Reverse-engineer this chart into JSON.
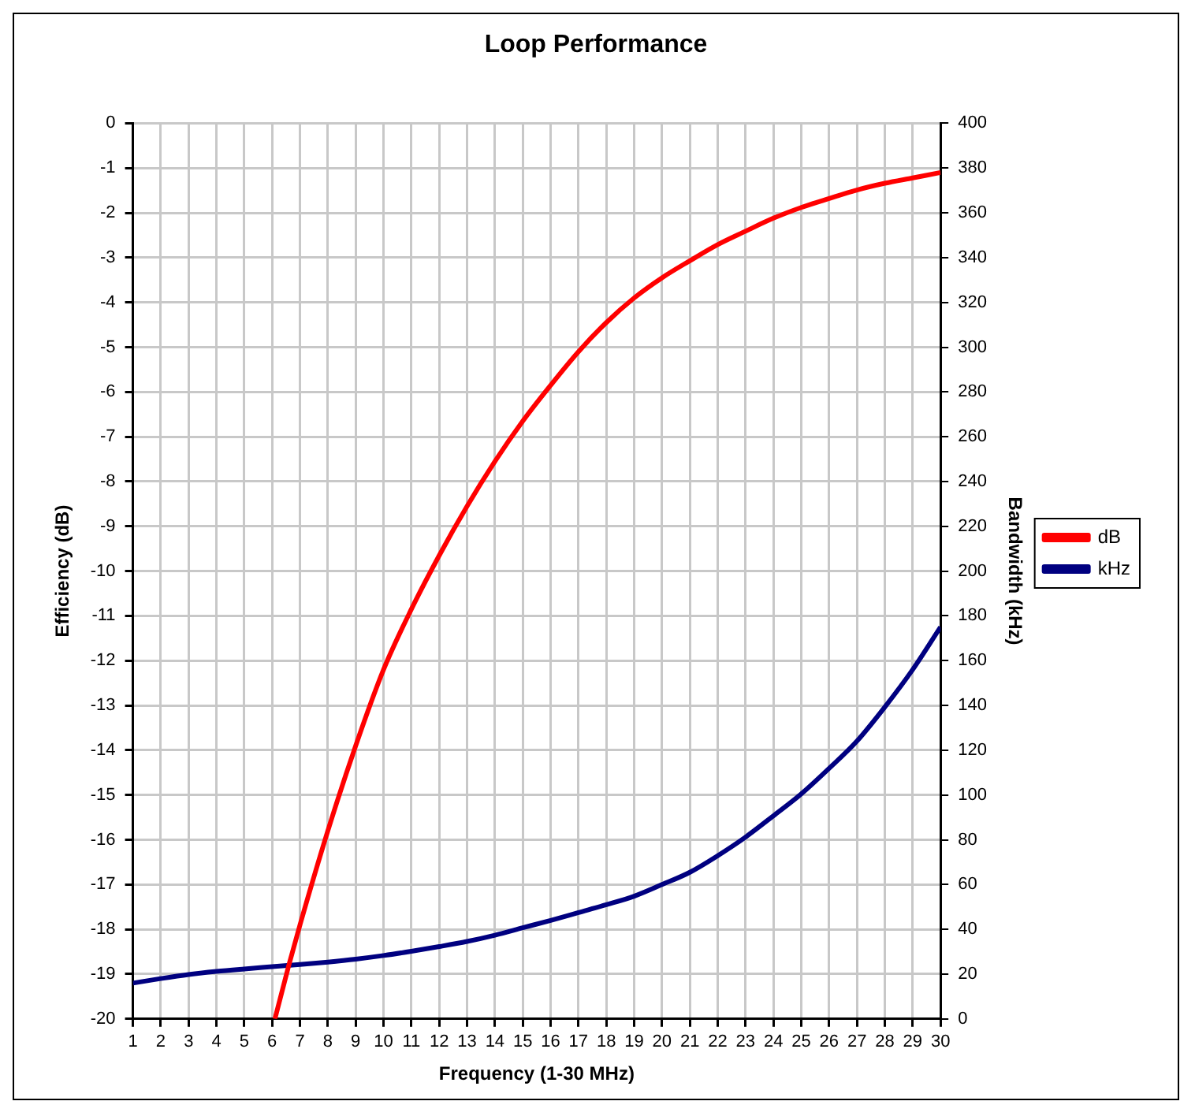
{
  "chart_data": {
    "type": "line",
    "title": "Loop Performance",
    "xlabel": "Frequency (1-30 MHz)",
    "ylabel": "Efficiency (dB)",
    "y2label": "Bandwidth (kHz)",
    "xlim": [
      1,
      30
    ],
    "xticks": [
      1,
      2,
      3,
      4,
      5,
      6,
      7,
      8,
      9,
      10,
      11,
      12,
      13,
      14,
      15,
      16,
      17,
      18,
      19,
      20,
      21,
      22,
      23,
      24,
      25,
      26,
      27,
      28,
      29,
      30
    ],
    "ylim": [
      -20,
      0
    ],
    "yticks": [
      -20,
      -19,
      -18,
      -17,
      -16,
      -15,
      -14,
      -13,
      -12,
      -11,
      -10,
      -9,
      -8,
      -7,
      -6,
      -5,
      -4,
      -3,
      -2,
      -1,
      0
    ],
    "y2lim": [
      0,
      400
    ],
    "y2ticks": [
      0,
      20,
      40,
      60,
      80,
      100,
      120,
      140,
      160,
      180,
      200,
      220,
      240,
      260,
      280,
      300,
      320,
      340,
      360,
      380,
      400
    ],
    "grid": true,
    "legend": "right",
    "marker": "none",
    "line_style": "solid",
    "series": [
      {
        "name": "dB",
        "color": "#ff0000",
        "x": [
          6.1,
          6.6,
          7,
          8,
          9,
          10,
          11,
          12,
          13,
          14,
          15,
          16,
          17,
          18,
          19,
          20,
          21,
          22,
          23,
          24,
          25,
          26,
          27,
          28,
          29,
          30
        ],
        "values": [
          -20,
          -18.8,
          -17.9,
          -15.8,
          -13.9,
          -12.2,
          -10.85,
          -9.65,
          -8.55,
          -7.55,
          -6.65,
          -5.85,
          -5.1,
          -4.45,
          -3.9,
          -3.45,
          -3.07,
          -2.71,
          -2.41,
          -2.12,
          -1.88,
          -1.68,
          -1.49,
          -1.34,
          -1.22,
          -1.1
        ]
      },
      {
        "name": "kHz",
        "color": "#000080",
        "axis": "y2",
        "x": [
          1,
          2,
          3,
          4,
          5,
          6,
          7,
          8,
          9,
          10,
          11,
          12,
          13,
          14,
          15,
          16,
          17,
          18,
          19,
          20,
          21,
          22,
          23,
          24,
          25,
          26,
          27,
          28,
          29,
          30
        ],
        "values": [
          16,
          18,
          19.8,
          21.2,
          22.3,
          23.3,
          24.3,
          25.4,
          26.7,
          28.3,
          30.2,
          32.3,
          34.6,
          37.4,
          40.7,
          44,
          47.5,
          51,
          54.8,
          60,
          65.5,
          72.9,
          81.2,
          90.7,
          100.5,
          111.9,
          124.1,
          139.3,
          156,
          175
        ]
      }
    ]
  }
}
